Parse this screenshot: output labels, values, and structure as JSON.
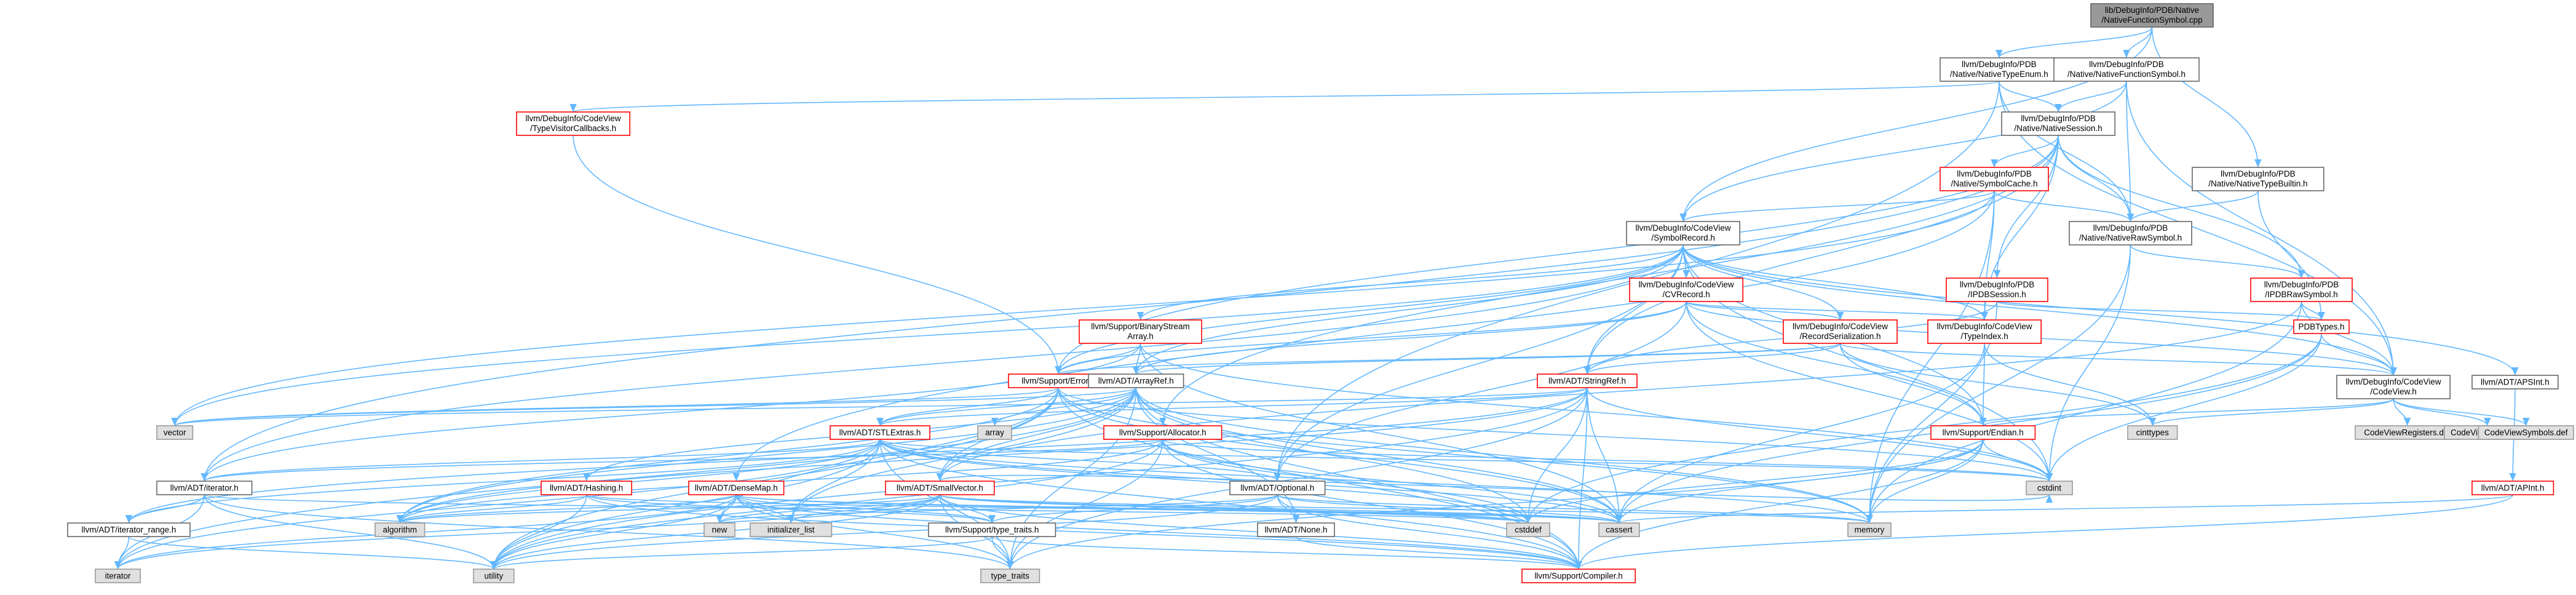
{
  "colors": {
    "root_fill": "#999999",
    "root_border": "#666666",
    "doc_fill": "#ffffff",
    "doc_border": "#666666",
    "undoc_border": "#ff0000",
    "system_fill": "#e0e0e0",
    "system_border": "#999999",
    "edge": "#63b8ff",
    "text": "#000000"
  },
  "graph": {
    "nodes": [
      {
        "id": "root",
        "kind": "root",
        "lines": [
          "lib/DebugInfo/PDB/Native",
          "/NativeFunctionSymbol.cpp"
        ]
      },
      {
        "id": "nativetypeenum",
        "kind": "doc",
        "lines": [
          "llvm/DebugInfo/PDB",
          "/Native/NativeTypeEnum.h"
        ]
      },
      {
        "id": "nativefunctionsymbol",
        "kind": "doc",
        "lines": [
          "llvm/DebugInfo/PDB",
          "/Native/NativeFunctionSymbol.h"
        ]
      },
      {
        "id": "typevisitorcallbacks",
        "kind": "undoc",
        "lines": [
          "llvm/DebugInfo/CodeView",
          "/TypeVisitorCallbacks.h"
        ]
      },
      {
        "id": "nativesession",
        "kind": "doc",
        "lines": [
          "llvm/DebugInfo/PDB",
          "/Native/NativeSession.h"
        ]
      },
      {
        "id": "symbolcache",
        "kind": "undoc",
        "lines": [
          "llvm/DebugInfo/PDB",
          "/Native/SymbolCache.h"
        ]
      },
      {
        "id": "nativetypebuiltin",
        "kind": "doc",
        "lines": [
          "llvm/DebugInfo/PDB",
          "/Native/NativeTypeBuiltin.h"
        ]
      },
      {
        "id": "symbolrecord",
        "kind": "doc",
        "lines": [
          "llvm/DebugInfo/CodeView",
          "/SymbolRecord.h"
        ]
      },
      {
        "id": "nativerawsymbol",
        "kind": "doc",
        "lines": [
          "llvm/DebugInfo/PDB",
          "/Native/NativeRawSymbol.h"
        ]
      },
      {
        "id": "cvrecord",
        "kind": "undoc",
        "lines": [
          "llvm/DebugInfo/CodeView",
          "/CVRecord.h"
        ]
      },
      {
        "id": "ipdbsession",
        "kind": "undoc",
        "lines": [
          "llvm/DebugInfo/PDB",
          "/IPDBSession.h"
        ]
      },
      {
        "id": "ipdbrawsymbol",
        "kind": "undoc",
        "lines": [
          "llvm/DebugInfo/PDB",
          "/IPDBRawSymbol.h"
        ]
      },
      {
        "id": "binarystreamarray",
        "kind": "undoc",
        "lines": [
          "llvm/Support/BinaryStream",
          "Array.h"
        ]
      },
      {
        "id": "recordserialization",
        "kind": "undoc",
        "lines": [
          "llvm/DebugInfo/CodeView",
          "/RecordSerialization.h"
        ]
      },
      {
        "id": "typeindex",
        "kind": "undoc",
        "lines": [
          "llvm/DebugInfo/CodeView",
          "/TypeIndex.h"
        ]
      },
      {
        "id": "pdbtypes",
        "kind": "undoc",
        "lines": [
          "PDBTypes.h"
        ]
      },
      {
        "id": "codeview",
        "kind": "doc",
        "lines": [
          "llvm/DebugInfo/CodeView",
          "/CodeView.h"
        ]
      },
      {
        "id": "apsint",
        "kind": "doc",
        "lines": [
          "llvm/ADT/APSInt.h"
        ]
      },
      {
        "id": "error",
        "kind": "undoc",
        "lines": [
          "llvm/Support/Error.h"
        ]
      },
      {
        "id": "arrayref",
        "kind": "doc",
        "lines": [
          "llvm/ADT/ArrayRef.h"
        ]
      },
      {
        "id": "stringref",
        "kind": "undoc",
        "lines": [
          "llvm/ADT/StringRef.h"
        ]
      },
      {
        "id": "vector",
        "kind": "system",
        "lines": [
          "vector"
        ]
      },
      {
        "id": "array",
        "kind": "system",
        "lines": [
          "array"
        ]
      },
      {
        "id": "stlextras",
        "kind": "undoc",
        "lines": [
          "llvm/ADT/STLExtras.h"
        ]
      },
      {
        "id": "allocator",
        "kind": "undoc",
        "lines": [
          "llvm/Support/Allocator.h"
        ]
      },
      {
        "id": "endian",
        "kind": "undoc",
        "lines": [
          "llvm/Support/Endian.h"
        ]
      },
      {
        "id": "cinttypes",
        "kind": "system",
        "lines": [
          "cinttypes"
        ]
      },
      {
        "id": "cvregisters",
        "kind": "system",
        "lines": [
          "CodeViewRegisters.def"
        ]
      },
      {
        "id": "cvtypes",
        "kind": "system",
        "lines": [
          "CodeViewTypes.def"
        ]
      },
      {
        "id": "cvsymbols",
        "kind": "system",
        "lines": [
          "CodeViewSymbols.def"
        ]
      },
      {
        "id": "apint",
        "kind": "undoc",
        "lines": [
          "llvm/ADT/APInt.h"
        ]
      },
      {
        "id": "cstdint",
        "kind": "system",
        "lines": [
          "cstdint"
        ]
      },
      {
        "id": "iteratorh",
        "kind": "doc",
        "lines": [
          "llvm/ADT/iterator.h"
        ]
      },
      {
        "id": "hashing",
        "kind": "undoc",
        "lines": [
          "llvm/ADT/Hashing.h"
        ]
      },
      {
        "id": "densemap",
        "kind": "undoc",
        "lines": [
          "llvm/ADT/DenseMap.h"
        ]
      },
      {
        "id": "smallvector",
        "kind": "undoc",
        "lines": [
          "llvm/ADT/SmallVector.h"
        ]
      },
      {
        "id": "optional",
        "kind": "doc",
        "lines": [
          "llvm/ADT/Optional.h"
        ]
      },
      {
        "id": "iteratorrange",
        "kind": "doc",
        "lines": [
          "llvm/ADT/iterator_range.h"
        ]
      },
      {
        "id": "algorithm",
        "kind": "system",
        "lines": [
          "algorithm"
        ]
      },
      {
        "id": "new",
        "kind": "system",
        "lines": [
          "new"
        ]
      },
      {
        "id": "initializerlist",
        "kind": "system",
        "lines": [
          "initializer_list"
        ]
      },
      {
        "id": "typetraitsh",
        "kind": "doc",
        "lines": [
          "llvm/Support/type_traits.h"
        ]
      },
      {
        "id": "none",
        "kind": "doc",
        "lines": [
          "llvm/ADT/None.h"
        ]
      },
      {
        "id": "cstddef",
        "kind": "system",
        "lines": [
          "cstddef"
        ]
      },
      {
        "id": "cassert",
        "kind": "system",
        "lines": [
          "cassert"
        ]
      },
      {
        "id": "memory",
        "kind": "system",
        "lines": [
          "memory"
        ]
      },
      {
        "id": "iterator",
        "kind": "system",
        "lines": [
          "iterator"
        ]
      },
      {
        "id": "utility",
        "kind": "system",
        "lines": [
          "utility"
        ]
      },
      {
        "id": "typetraits",
        "kind": "system",
        "lines": [
          "type_traits"
        ]
      },
      {
        "id": "compiler",
        "kind": "undoc",
        "lines": [
          "llvm/Support/Compiler.h"
        ]
      }
    ],
    "edges": [
      [
        "root",
        "nativetypeenum"
      ],
      [
        "root",
        "nativefunctionsymbol"
      ],
      [
        "root",
        "symbolrecord"
      ],
      [
        "root",
        "nativetypebuiltin"
      ],
      [
        "nativetypeenum",
        "typevisitorcallbacks"
      ],
      [
        "nativetypeenum",
        "nativesession"
      ],
      [
        "nativetypeenum",
        "nativerawsymbol"
      ],
      [
        "nativetypeenum",
        "codeview"
      ],
      [
        "nativetypeenum",
        "optional"
      ],
      [
        "nativefunctionsymbol",
        "nativesession"
      ],
      [
        "nativefunctionsymbol",
        "nativerawsymbol"
      ],
      [
        "nativefunctionsymbol",
        "symbolrecord"
      ],
      [
        "nativefunctionsymbol",
        "codeview"
      ],
      [
        "typevisitorcallbacks",
        "error"
      ],
      [
        "nativesession",
        "symbolcache"
      ],
      [
        "nativesession",
        "nativerawsymbol"
      ],
      [
        "nativesession",
        "ipdbsession"
      ],
      [
        "nativesession",
        "ipdbrawsymbol"
      ],
      [
        "nativesession",
        "error"
      ],
      [
        "nativesession",
        "iteratorh"
      ],
      [
        "nativesession",
        "stringref"
      ],
      [
        "nativesession",
        "typeindex"
      ],
      [
        "nativesession",
        "allocator"
      ],
      [
        "symbolcache",
        "symbolrecord"
      ],
      [
        "symbolcache",
        "nativerawsymbol"
      ],
      [
        "symbolcache",
        "typeindex"
      ],
      [
        "symbolcache",
        "densemap"
      ],
      [
        "symbolcache",
        "vector"
      ],
      [
        "symbolcache",
        "memory"
      ],
      [
        "nativetypebuiltin",
        "nativerawsymbol"
      ],
      [
        "nativetypebuiltin",
        "pdbtypes"
      ],
      [
        "symbolrecord",
        "cvrecord"
      ],
      [
        "symbolrecord",
        "recordserialization"
      ],
      [
        "symbolrecord",
        "typeindex"
      ],
      [
        "symbolrecord",
        "codeview"
      ],
      [
        "symbolrecord",
        "apsint"
      ],
      [
        "symbolrecord",
        "binarystreamarray"
      ],
      [
        "symbolrecord",
        "arrayref"
      ],
      [
        "symbolrecord",
        "stringref"
      ],
      [
        "symbolrecord",
        "optional"
      ],
      [
        "symbolrecord",
        "iteratorh"
      ],
      [
        "symbolrecord",
        "error"
      ],
      [
        "symbolrecord",
        "endian"
      ],
      [
        "symbolrecord",
        "cstdint"
      ],
      [
        "symbolrecord",
        "vector"
      ],
      [
        "nativerawsymbol",
        "ipdbrawsymbol"
      ],
      [
        "nativerawsymbol",
        "memory"
      ],
      [
        "nativerawsymbol",
        "cstdint"
      ],
      [
        "cvrecord",
        "recordserialization"
      ],
      [
        "cvrecord",
        "typeindex"
      ],
      [
        "cvrecord",
        "error"
      ],
      [
        "cvrecord",
        "arrayref"
      ],
      [
        "cvrecord",
        "optional"
      ],
      [
        "cvrecord",
        "endian"
      ],
      [
        "cvrecord",
        "cstdint"
      ],
      [
        "cvrecord",
        "codeview"
      ],
      [
        "ipdbsession",
        "pdbtypes"
      ],
      [
        "ipdbsession",
        "memory"
      ],
      [
        "ipdbsession",
        "stringref"
      ],
      [
        "ipdbrawsymbol",
        "pdbtypes"
      ],
      [
        "ipdbrawsymbol",
        "codeview"
      ],
      [
        "ipdbrawsymbol",
        "smallvector"
      ],
      [
        "ipdbrawsymbol",
        "memory"
      ],
      [
        "binarystreamarray",
        "arrayref"
      ],
      [
        "binarystreamarray",
        "iteratorh"
      ],
      [
        "binarystreamarray",
        "error"
      ],
      [
        "binarystreamarray",
        "cassert"
      ],
      [
        "binarystreamarray",
        "cstdint"
      ],
      [
        "recordserialization",
        "codeview"
      ],
      [
        "recordserialization",
        "arrayref"
      ],
      [
        "recordserialization",
        "stringref"
      ],
      [
        "recordserialization",
        "error"
      ],
      [
        "recordserialization",
        "endian"
      ],
      [
        "recordserialization",
        "cinttypes"
      ],
      [
        "typeindex",
        "endian"
      ],
      [
        "typeindex",
        "cinttypes"
      ],
      [
        "typeindex",
        "cassert"
      ],
      [
        "pdbtypes",
        "codeview"
      ],
      [
        "pdbtypes",
        "cstdint"
      ],
      [
        "pdbtypes",
        "cstddef"
      ],
      [
        "pdbtypes",
        "cassert"
      ],
      [
        "codeview",
        "cvregisters"
      ],
      [
        "codeview",
        "cvtypes"
      ],
      [
        "codeview",
        "cvsymbols"
      ],
      [
        "codeview",
        "endian"
      ],
      [
        "codeview",
        "cinttypes"
      ],
      [
        "codeview",
        "type_traits_edge_dummy"
      ],
      [
        "apsint",
        "apint"
      ],
      [
        "apint",
        "compiler"
      ],
      [
        "apint",
        "cassert"
      ],
      [
        "error",
        "stlextras"
      ],
      [
        "error",
        "smallvector"
      ],
      [
        "error",
        "compiler"
      ],
      [
        "error",
        "cassert"
      ],
      [
        "error",
        "algorithm"
      ],
      [
        "error",
        "memory"
      ],
      [
        "error",
        "new"
      ],
      [
        "error",
        "utility"
      ],
      [
        "error",
        "vector"
      ],
      [
        "error",
        "cstdint"
      ],
      [
        "arrayref",
        "stlextras"
      ],
      [
        "arrayref",
        "smallvector"
      ],
      [
        "arrayref",
        "hashing"
      ],
      [
        "arrayref",
        "none"
      ],
      [
        "arrayref",
        "compiler"
      ],
      [
        "arrayref",
        "algorithm"
      ],
      [
        "arrayref",
        "array"
      ],
      [
        "arrayref",
        "cassert"
      ],
      [
        "arrayref",
        "cstddef"
      ],
      [
        "arrayref",
        "initializerlist"
      ],
      [
        "arrayref",
        "iterator"
      ],
      [
        "arrayref",
        "memory"
      ],
      [
        "arrayref",
        "typetraits"
      ],
      [
        "arrayref",
        "vector"
      ],
      [
        "stringref",
        "stlextras"
      ],
      [
        "stringref",
        "iteratorrange"
      ],
      [
        "stringref",
        "compiler"
      ],
      [
        "stringref",
        "algorithm"
      ],
      [
        "stringref",
        "cassert"
      ],
      [
        "stringref",
        "cstddef"
      ],
      [
        "stringref",
        "cstring_dummy"
      ],
      [
        "stringref",
        "limits_dummy"
      ],
      [
        "stringref",
        "string_dummy"
      ],
      [
        "stringref",
        "typetraits"
      ],
      [
        "stringref",
        "utility"
      ],
      [
        "stringref",
        "cstdint"
      ],
      [
        "stringref",
        "vector"
      ],
      [
        "stlextras",
        "optional"
      ],
      [
        "stlextras",
        "iteratorh"
      ],
      [
        "stlextras",
        "iteratorrange"
      ],
      [
        "stlextras",
        "compiler"
      ],
      [
        "stlextras",
        "algorithm"
      ],
      [
        "stlextras",
        "cassert"
      ],
      [
        "stlextras",
        "cstddef"
      ],
      [
        "stlextras",
        "cstdint"
      ],
      [
        "stlextras",
        "initializerlist"
      ],
      [
        "stlextras",
        "iterator"
      ],
      [
        "stlextras",
        "memory"
      ],
      [
        "stlextras",
        "typetraits"
      ],
      [
        "stlextras",
        "utility"
      ],
      [
        "allocator",
        "compiler"
      ],
      [
        "allocator",
        "algorithm"
      ],
      [
        "allocator",
        "cassert"
      ],
      [
        "allocator",
        "cstddef"
      ],
      [
        "allocator",
        "cstdint"
      ],
      [
        "allocator",
        "iteratorh"
      ],
      [
        "allocator",
        "typetraits"
      ],
      [
        "allocator",
        "utility"
      ],
      [
        "endian",
        "compiler"
      ],
      [
        "endian",
        "cassert"
      ],
      [
        "endian",
        "cstddef"
      ],
      [
        "endian",
        "cstdint"
      ],
      [
        "endian",
        "typetraits"
      ],
      [
        "endian",
        "memory"
      ],
      [
        "iteratorh",
        "iteratorrange"
      ],
      [
        "iteratorh",
        "cstddef"
      ],
      [
        "iteratorh",
        "iterator"
      ],
      [
        "iteratorh",
        "typetraits"
      ],
      [
        "iteratorh",
        "utility"
      ],
      [
        "hashing",
        "typetraitsh"
      ],
      [
        "hashing",
        "compiler"
      ],
      [
        "hashing",
        "algorithm"
      ],
      [
        "hashing",
        "cassert"
      ],
      [
        "hashing",
        "cstring_dummy"
      ],
      [
        "hashing",
        "utility"
      ],
      [
        "densemap",
        "compiler"
      ],
      [
        "densemap",
        "algorithm"
      ],
      [
        "densemap",
        "cassert"
      ],
      [
        "densemap",
        "cstddef"
      ],
      [
        "densemap",
        "initializerlist"
      ],
      [
        "densemap",
        "iterator"
      ],
      [
        "densemap",
        "new"
      ],
      [
        "densemap",
        "typetraits"
      ],
      [
        "densemap",
        "utility"
      ],
      [
        "densemap",
        "typetraitsh"
      ],
      [
        "smallvector",
        "compiler"
      ],
      [
        "smallvector",
        "typetraitsh"
      ],
      [
        "smallvector",
        "algorithm"
      ],
      [
        "smallvector",
        "cassert"
      ],
      [
        "smallvector",
        "cstddef"
      ],
      [
        "smallvector",
        "cstdint"
      ],
      [
        "smallvector",
        "initializerlist"
      ],
      [
        "smallvector",
        "iterator"
      ],
      [
        "smallvector",
        "memory"
      ],
      [
        "smallvector",
        "new"
      ],
      [
        "smallvector",
        "typetraits"
      ],
      [
        "smallvector",
        "utility"
      ],
      [
        "optional",
        "none"
      ],
      [
        "optional",
        "compiler"
      ],
      [
        "optional",
        "typetraitsh"
      ],
      [
        "optional",
        "cassert"
      ],
      [
        "optional",
        "memory"
      ],
      [
        "optional",
        "new"
      ],
      [
        "optional",
        "utility"
      ],
      [
        "iteratorrange",
        "utility"
      ],
      [
        "iteratorrange",
        "iterator"
      ],
      [
        "typetraitsh",
        "typetraits"
      ],
      [
        "typetraitsh",
        "utility"
      ],
      [
        "typetraitsh",
        "compiler"
      ],
      [
        "none",
        "compiler"
      ]
    ]
  }
}
